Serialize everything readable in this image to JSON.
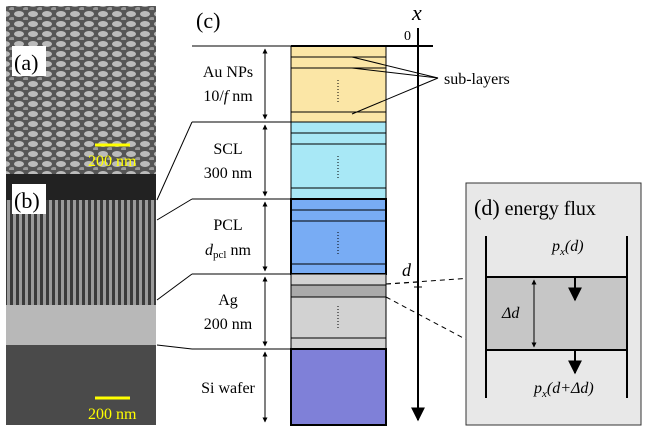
{
  "panels": {
    "a": {
      "label": "(a)",
      "scale": "200 nm"
    },
    "b": {
      "label": "(b)",
      "scale": "200 nm"
    },
    "c": {
      "label": "(c)",
      "axis": "x",
      "origin": "0",
      "depth": "d",
      "annotation": "sub-layers"
    },
    "d": {
      "label": "(d)",
      "title": "energy flux",
      "flux_top": [
        "p",
        "x",
        "(d)"
      ],
      "thickness": "Δd",
      "flux_bottom": [
        "p",
        "x",
        "(d+Δd)"
      ]
    }
  },
  "layers": [
    {
      "name": "Au NPs",
      "thickness": [
        "10/",
        "f",
        " nm"
      ]
    },
    {
      "name": "SCL",
      "thickness": [
        "300 nm"
      ]
    },
    {
      "name": "PCL",
      "thickness": [
        "d",
        "pcl",
        " nm"
      ]
    },
    {
      "name": "Ag",
      "thickness": [
        "200 nm"
      ]
    },
    {
      "name": "Si wafer",
      "thickness": []
    }
  ]
}
